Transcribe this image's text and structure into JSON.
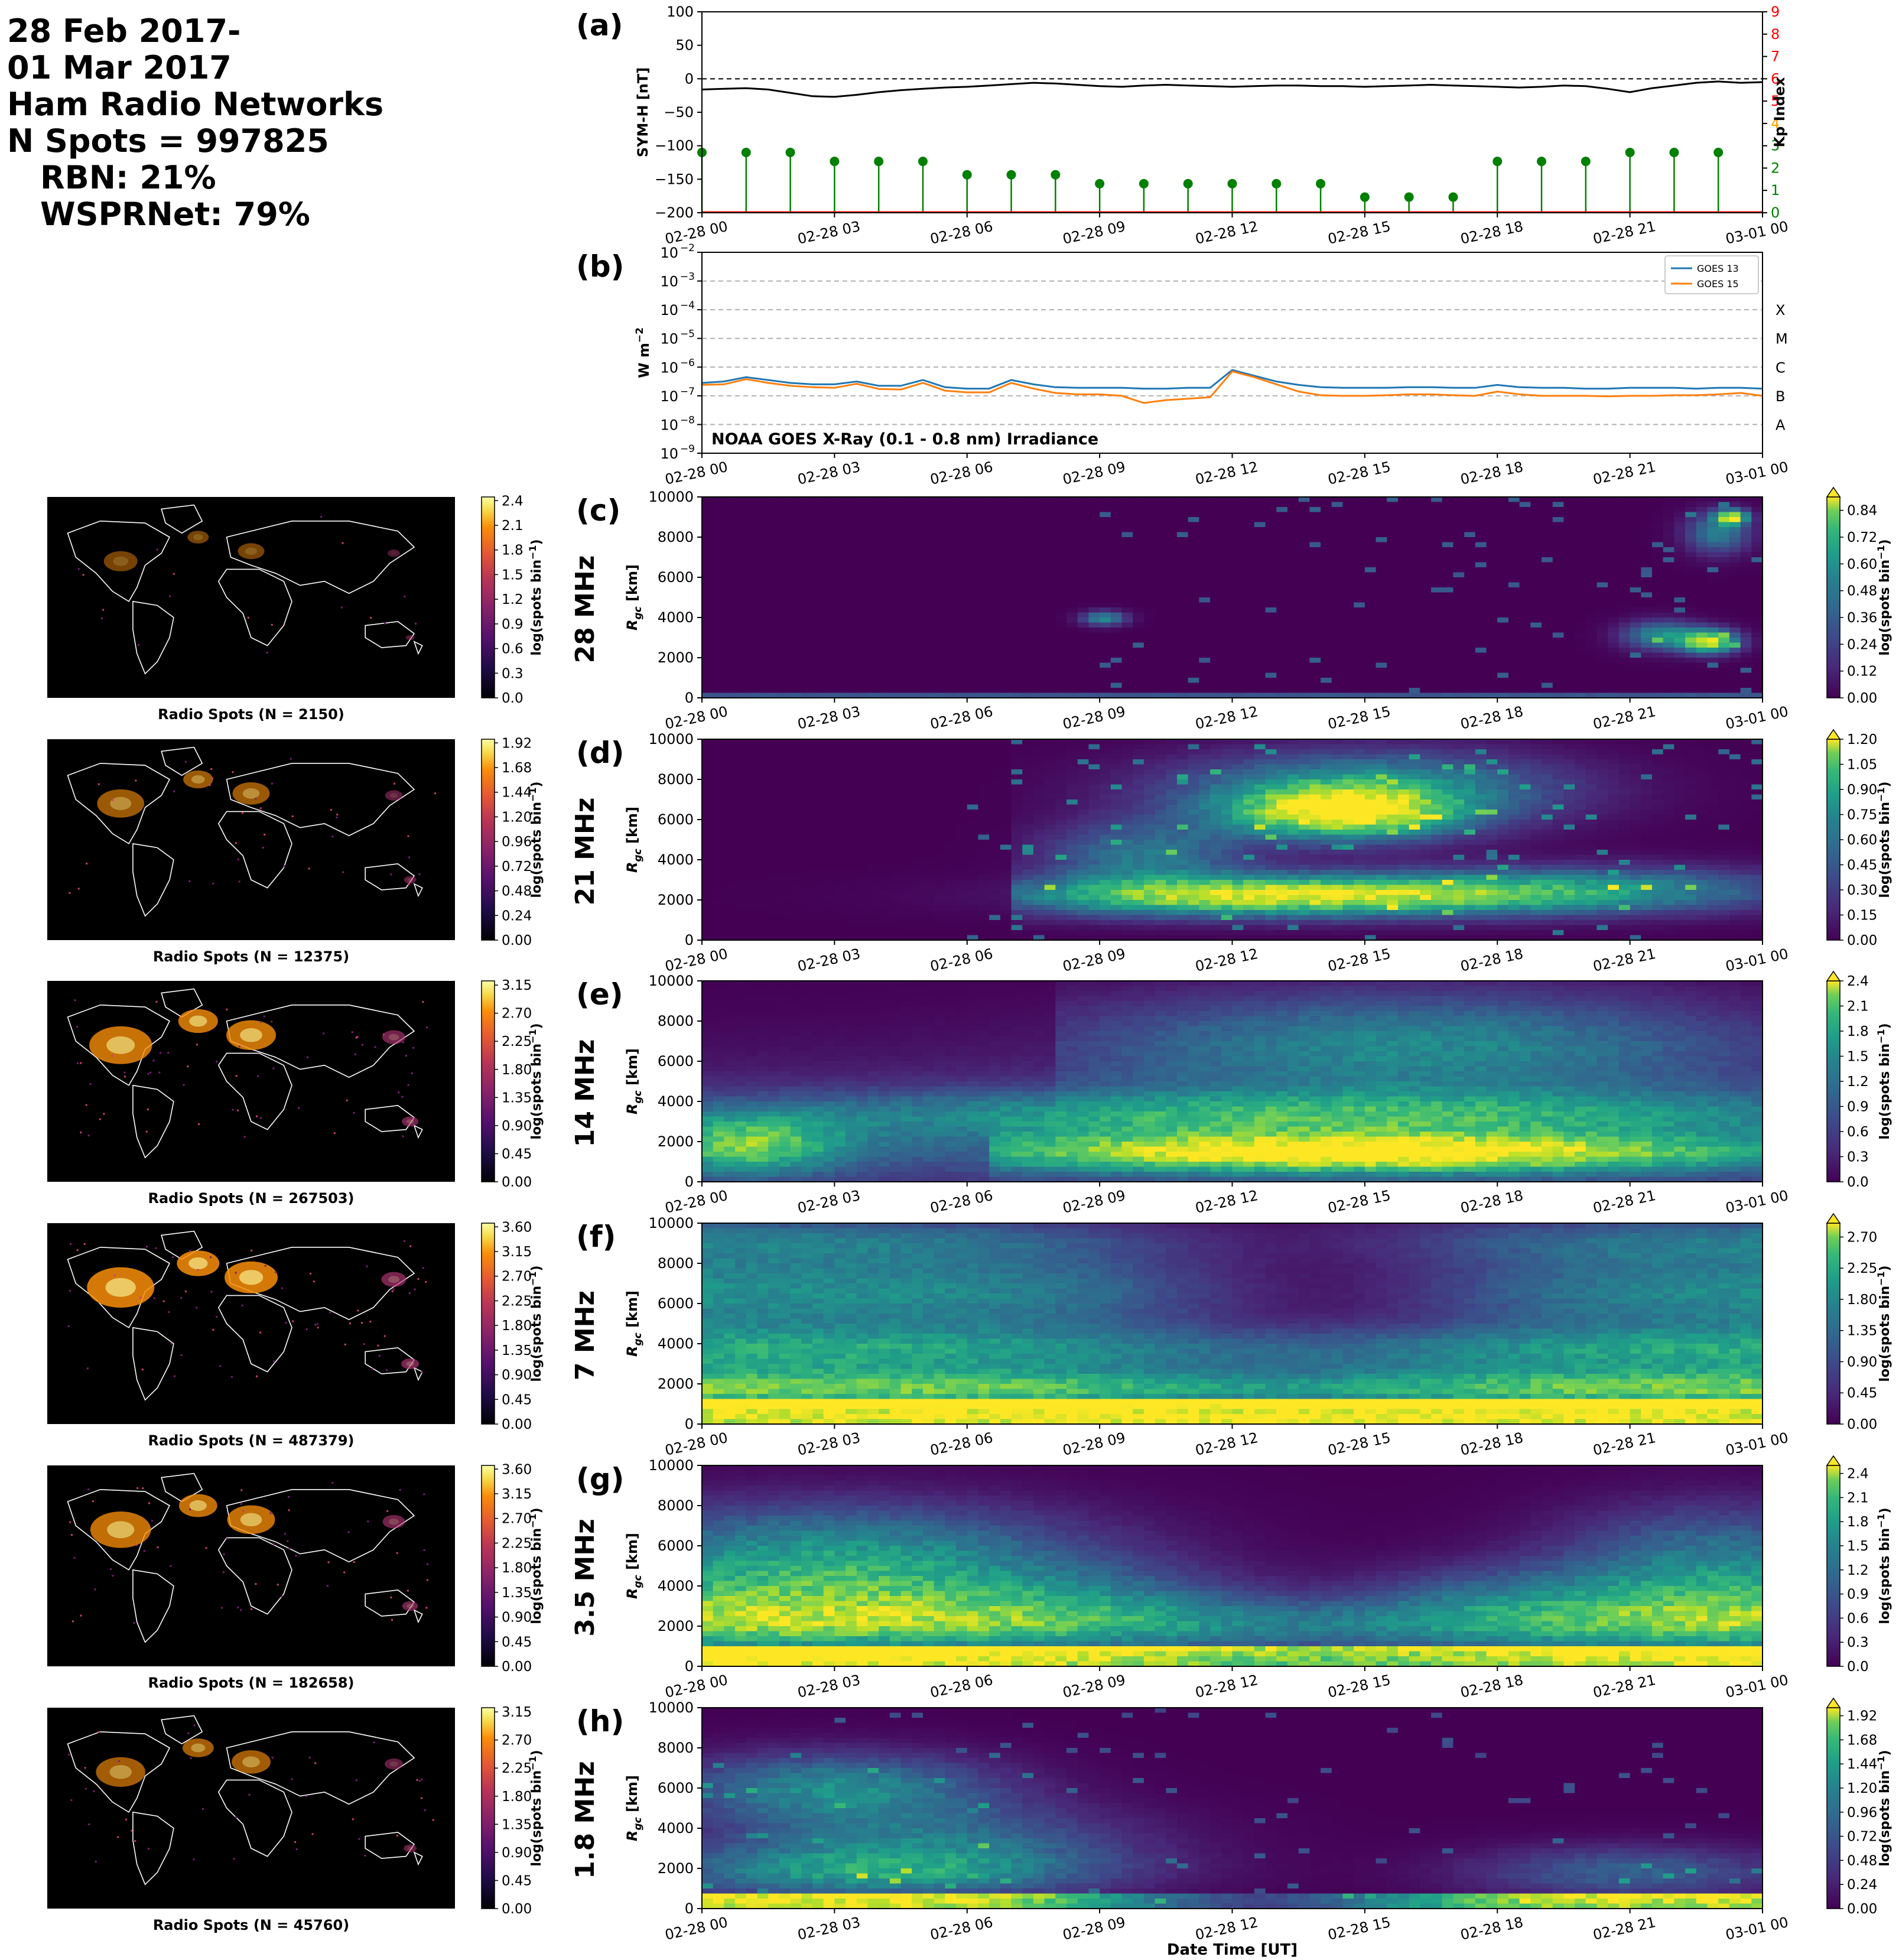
{
  "header": {
    "lines": [
      "28 Feb 2017-",
      "01 Mar 2017",
      "Ham Radio Networks",
      "N Spots = 997825"
    ],
    "sub_lines": [
      "RBN: 21%",
      "WSPRNet: 79%"
    ]
  },
  "time_ticks": [
    "02-28 00",
    "02-28 03",
    "02-28 06",
    "02-28 09",
    "02-28 12",
    "02-28 15",
    "02-28 18",
    "02-28 21",
    "03-01 00"
  ],
  "xlabel": "Date Time [UT]",
  "colors": {
    "symh": "#000000",
    "kp_low": "#008000",
    "kp_mid": "#ffa500",
    "kp_high": "#ff0000",
    "goes13": "#1f77b4",
    "goes15": "#ff7f0e",
    "viridis_dark": "#440154",
    "viridis_mid": "#21918c",
    "viridis_bright": "#fde725"
  },
  "chart_data": [
    {
      "id": "a",
      "panel_label": "(a)",
      "type": "line",
      "ylabel": "SYM-H [nT]",
      "ylim": [
        -200,
        100
      ],
      "yticks": [
        "100",
        "50",
        "0",
        "−50",
        "−100",
        "−150",
        "−200"
      ],
      "y2label": "Kp Index",
      "y2lim": [
        0,
        9
      ],
      "y2ticks": [
        "0",
        "1",
        "2",
        "3",
        "4",
        "5",
        "6",
        "7",
        "8",
        "9"
      ],
      "symh": {
        "x_hours": [
          0,
          0.5,
          1,
          1.5,
          2,
          2.5,
          3,
          3.5,
          4,
          4.5,
          5,
          5.5,
          6,
          6.5,
          7,
          7.5,
          8,
          8.5,
          9,
          9.5,
          10,
          10.5,
          11,
          11.5,
          12,
          12.5,
          13,
          13.5,
          14,
          14.5,
          15,
          15.5,
          16,
          16.5,
          17,
          17.5,
          18,
          18.5,
          19,
          19.5,
          20,
          20.5,
          21,
          21.5,
          22,
          22.5,
          23,
          23.5,
          24
        ],
        "y": [
          -16,
          -15,
          -14,
          -16,
          -21,
          -26,
          -27,
          -24,
          -20,
          -17,
          -15,
          -13,
          -12,
          -10,
          -8,
          -6,
          -7,
          -9,
          -11,
          -12,
          -10,
          -9,
          -10,
          -11,
          -12,
          -11,
          -10,
          -10,
          -11,
          -11,
          -12,
          -11,
          -10,
          -9,
          -10,
          -11,
          -12,
          -13,
          -12,
          -10,
          -11,
          -15,
          -20,
          -14,
          -10,
          -6,
          -4,
          -6,
          -5
        ]
      },
      "kp": {
        "x_hours": [
          0,
          1,
          2,
          3,
          4,
          5,
          6,
          7,
          8,
          9,
          10,
          11,
          12,
          13,
          14,
          15,
          16,
          17,
          18,
          19,
          20,
          21,
          22,
          23
        ],
        "values": [
          2.7,
          2.7,
          2.7,
          2.3,
          2.3,
          2.3,
          1.7,
          1.7,
          1.7,
          1.3,
          1.3,
          1.3,
          1.3,
          1.3,
          1.3,
          0.7,
          0.7,
          0.7,
          2.3,
          2.3,
          2.3,
          2.7,
          2.7,
          2.7
        ]
      }
    },
    {
      "id": "b",
      "panel_label": "(b)",
      "type": "line",
      "ylabel": "W m$^{-2}$",
      "ylabel_base": "W m",
      "ylabel_exp": "−2",
      "log_scale": true,
      "ylim_exp": [
        -9,
        -2
      ],
      "yticks_exp": [
        "−2",
        "−3",
        "−4",
        "−5",
        "−6",
        "−7",
        "−8",
        "−9"
      ],
      "ytick_base": "10",
      "class_labels": [
        "X",
        "M",
        "C",
        "B",
        "A"
      ],
      "annotation": "NOAA GOES X-Ray (0.1 - 0.8 nm) Irradiance",
      "legend": [
        "GOES 13",
        "GOES 15"
      ],
      "legend_position": "top-right",
      "x_hours": [
        0,
        0.5,
        1,
        1.5,
        2,
        2.5,
        3,
        3.5,
        4,
        4.5,
        5,
        5.5,
        6,
        6.5,
        7,
        7.5,
        8,
        8.5,
        9,
        9.5,
        10,
        10.5,
        11,
        11.5,
        12,
        12.5,
        13,
        13.5,
        14,
        14.5,
        15,
        15.5,
        16,
        16.5,
        17,
        17.5,
        18,
        18.5,
        19,
        19.5,
        20,
        20.5,
        21,
        21.5,
        22,
        22.5,
        23,
        23.5,
        24
      ],
      "series": [
        {
          "name": "GOES 13",
          "log10_flux": [
            -6.55,
            -6.5,
            -6.35,
            -6.45,
            -6.55,
            -6.6,
            -6.6,
            -6.5,
            -6.65,
            -6.65,
            -6.45,
            -6.7,
            -6.75,
            -6.75,
            -6.45,
            -6.6,
            -6.7,
            -6.72,
            -6.72,
            -6.72,
            -6.75,
            -6.75,
            -6.72,
            -6.72,
            -6.1,
            -6.3,
            -6.5,
            -6.62,
            -6.7,
            -6.72,
            -6.72,
            -6.72,
            -6.7,
            -6.7,
            -6.72,
            -6.72,
            -6.62,
            -6.7,
            -6.72,
            -6.72,
            -6.75,
            -6.75,
            -6.72,
            -6.72,
            -6.72,
            -6.75,
            -6.72,
            -6.72,
            -6.75
          ]
        },
        {
          "name": "GOES 15",
          "log10_flux": [
            -6.62,
            -6.6,
            -6.42,
            -6.55,
            -6.65,
            -6.7,
            -6.72,
            -6.58,
            -6.76,
            -6.78,
            -6.55,
            -6.82,
            -6.88,
            -6.88,
            -6.55,
            -6.75,
            -6.9,
            -6.95,
            -6.95,
            -7.0,
            -7.25,
            -7.15,
            -7.1,
            -7.05,
            -6.15,
            -6.35,
            -6.6,
            -6.85,
            -6.98,
            -7.0,
            -7.0,
            -6.98,
            -6.95,
            -6.95,
            -6.98,
            -7.0,
            -6.85,
            -6.95,
            -7.0,
            -7.0,
            -7.0,
            -7.02,
            -7.0,
            -7.0,
            -6.98,
            -6.98,
            -6.95,
            -6.9,
            -7.0
          ]
        }
      ]
    },
    {
      "id": "c",
      "panel_label": "(c)",
      "type": "heatmap",
      "band": "28 MHz",
      "ylabel": "R$_{gc}$ [km]",
      "ylabel_base": "R",
      "ylabel_sub": "gc",
      "ylabel_unit": "[km]",
      "ylim": [
        0,
        10000
      ],
      "yticks": [
        "0",
        "2000",
        "4000",
        "6000",
        "8000",
        "10000"
      ],
      "colorbar_label": "log(spots bin$^{-1}$)",
      "colorbar_max": 0.9,
      "colorbar_ticks": [
        "0.00",
        "0.12",
        "0.24",
        "0.36",
        "0.48",
        "0.60",
        "0.72",
        "0.84"
      ],
      "description_hotspots": [
        [
          9.2,
          3900,
          0.45
        ],
        [
          21.5,
          2800,
          0.55
        ],
        [
          22.8,
          2800,
          0.85
        ],
        [
          22.5,
          7800,
          0.5
        ],
        [
          23.5,
          9000,
          0.8
        ]
      ],
      "map": {
        "title": "Radio Spots (N = 2150)",
        "cbar_ticks": [
          "0.0",
          "0.3",
          "0.6",
          "0.9",
          "1.2",
          "1.5",
          "1.8",
          "2.1",
          "2.4"
        ]
      }
    },
    {
      "id": "d",
      "panel_label": "(d)",
      "type": "heatmap",
      "band": "21 MHz",
      "ylabel": "R$_{gc}$ [km]",
      "ylabel_base": "R",
      "ylabel_sub": "gc",
      "ylabel_unit": "[km]",
      "ylim": [
        0,
        10000
      ],
      "yticks": [
        "0",
        "2000",
        "4000",
        "6000",
        "8000",
        "10000"
      ],
      "colorbar_label": "log(spots bin$^{-1}$)",
      "colorbar_max": 1.2,
      "colorbar_ticks": [
        "0.00",
        "0.15",
        "0.30",
        "0.45",
        "0.60",
        "0.75",
        "0.90",
        "1.05",
        "1.20"
      ],
      "map": {
        "title": "Radio Spots (N = 12375)",
        "cbar_ticks": [
          "0.00",
          "0.24",
          "0.48",
          "0.72",
          "0.96",
          "1.20",
          "1.44",
          "1.68",
          "1.92"
        ]
      }
    },
    {
      "id": "e",
      "panel_label": "(e)",
      "type": "heatmap",
      "band": "14 MHz",
      "ylabel": "R$_{gc}$ [km]",
      "ylabel_base": "R",
      "ylabel_sub": "gc",
      "ylabel_unit": "[km]",
      "ylim": [
        0,
        10000
      ],
      "yticks": [
        "0",
        "2000",
        "4000",
        "6000",
        "8000",
        "10000"
      ],
      "colorbar_label": "log(spots bin$^{-1}$)",
      "colorbar_max": 2.4,
      "colorbar_ticks": [
        "0.0",
        "0.3",
        "0.6",
        "0.9",
        "1.2",
        "1.5",
        "1.8",
        "2.1",
        "2.4"
      ],
      "map": {
        "title": "Radio Spots (N = 267503)",
        "cbar_ticks": [
          "0.00",
          "0.45",
          "0.90",
          "1.35",
          "1.80",
          "2.25",
          "2.70",
          "3.15"
        ]
      }
    },
    {
      "id": "f",
      "panel_label": "(f)",
      "type": "heatmap",
      "band": "7 MHz",
      "ylabel": "R$_{gc}$ [km]",
      "ylabel_base": "R",
      "ylabel_sub": "gc",
      "ylabel_unit": "[km]",
      "ylim": [
        0,
        10000
      ],
      "yticks": [
        "0",
        "2000",
        "4000",
        "6000",
        "8000",
        "10000"
      ],
      "colorbar_label": "log(spots bin$^{-1}$)",
      "colorbar_max": 2.9,
      "colorbar_ticks": [
        "0.00",
        "0.45",
        "0.90",
        "1.35",
        "1.80",
        "2.25",
        "2.70"
      ],
      "map": {
        "title": "Radio Spots (N = 487379)",
        "cbar_ticks": [
          "0.00",
          "0.45",
          "0.90",
          "1.35",
          "1.80",
          "2.25",
          "2.70",
          "3.15",
          "3.60"
        ]
      }
    },
    {
      "id": "g",
      "panel_label": "(g)",
      "type": "heatmap",
      "band": "3.5 MHz",
      "ylabel": "R$_{gc}$ [km]",
      "ylabel_base": "R",
      "ylabel_sub": "gc",
      "ylabel_unit": "[km]",
      "ylim": [
        0,
        10000
      ],
      "yticks": [
        "0",
        "2000",
        "4000",
        "6000",
        "8000",
        "10000"
      ],
      "colorbar_label": "log(spots bin$^{-1}$)",
      "colorbar_max": 2.5,
      "colorbar_ticks": [
        "0.0",
        "0.3",
        "0.6",
        "0.9",
        "1.2",
        "1.5",
        "1.8",
        "2.1",
        "2.4"
      ],
      "map": {
        "title": "Radio Spots (N = 182658)",
        "cbar_ticks": [
          "0.00",
          "0.45",
          "0.90",
          "1.35",
          "1.80",
          "2.25",
          "2.70",
          "3.15",
          "3.60"
        ]
      }
    },
    {
      "id": "h",
      "panel_label": "(h)",
      "type": "heatmap",
      "band": "1.8 MHz",
      "ylabel": "R$_{gc}$ [km]",
      "ylabel_base": "R",
      "ylabel_sub": "gc",
      "ylabel_unit": "[km]",
      "ylim": [
        0,
        10000
      ],
      "yticks": [
        "0",
        "2000",
        "4000",
        "6000",
        "8000",
        "10000"
      ],
      "colorbar_label": "log(spots bin$^{-1}$)",
      "colorbar_max": 2.0,
      "colorbar_ticks": [
        "0.00",
        "0.24",
        "0.48",
        "0.72",
        "0.96",
        "1.20",
        "1.44",
        "1.68",
        "1.92"
      ],
      "map": {
        "title": "Radio Spots (N = 45760)",
        "cbar_ticks": [
          "0.00",
          "0.45",
          "0.90",
          "1.35",
          "1.80",
          "2.25",
          "2.70",
          "3.15"
        ]
      }
    }
  ]
}
